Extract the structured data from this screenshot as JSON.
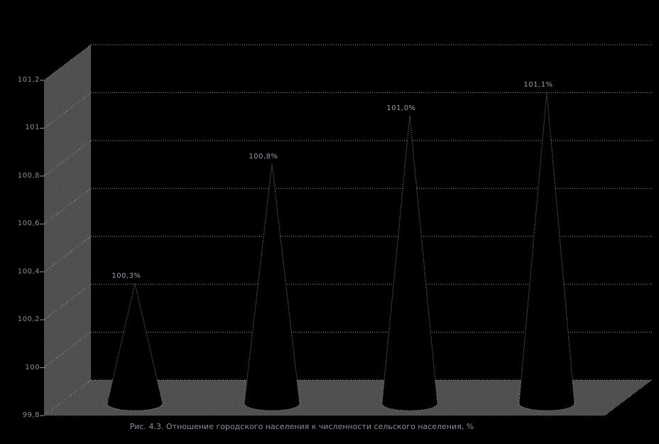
{
  "page": {
    "background": "#000000"
  },
  "chart_data": {
    "type": "bar",
    "bar_shape": "cone-3d",
    "title": "",
    "caption": "Рис. 4.3. Отношение городского населения к численности сельского населения, %",
    "categories": [
      "",
      "",
      "",
      ""
    ],
    "values": [
      100.3,
      100.8,
      101.0,
      101.1
    ],
    "data_labels": [
      "100,3%",
      "100,8%",
      "101,0%",
      "101,1%"
    ],
    "xlabel": "",
    "ylabel": "",
    "ylim": [
      99.8,
      101.2
    ],
    "y_tick_step": 0.2,
    "y_tick_labels": [
      "101,2",
      "101",
      "100,8",
      "100,6",
      "100,4",
      "100,2",
      "100",
      "99,8"
    ],
    "grid": true,
    "legend": false,
    "colors": {
      "background": "#000000",
      "texture_dot": "#9e9e9e",
      "grid_line": "#9a9a9a",
      "cone_fill": "#000000",
      "cone_outline": "#9a9a9a",
      "tick_label": "#8d8da0",
      "data_label": "#9d9dae",
      "caption": "#8d8da0"
    }
  }
}
